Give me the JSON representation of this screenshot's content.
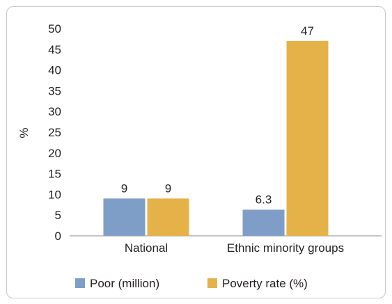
{
  "chart_data": {
    "type": "bar",
    "categories": [
      "National",
      "Ethnic minority groups"
    ],
    "series": [
      {
        "name": "Poor (million)",
        "values": [
          9,
          6.3
        ],
        "color": "#7f9ec7"
      },
      {
        "name": "Poverty rate (%)",
        "values": [
          9,
          47
        ],
        "color": "#e5b24a"
      }
    ],
    "data_labels": [
      [
        "9",
        "6.3"
      ],
      [
        "9",
        "47"
      ]
    ],
    "ylabel": "%",
    "xlabel": "",
    "ylim": [
      0,
      50
    ],
    "yticks": [
      0,
      5,
      10,
      15,
      20,
      25,
      30,
      35,
      40,
      45,
      50
    ],
    "grid": false,
    "legend_position": "bottom"
  }
}
